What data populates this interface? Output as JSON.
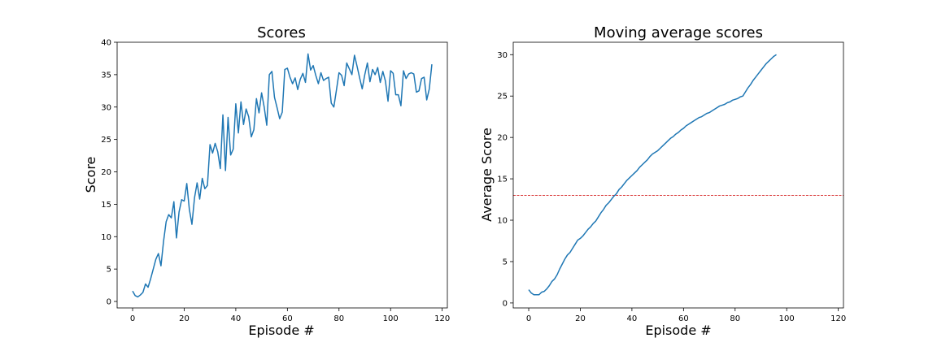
{
  "chart_data": [
    {
      "type": "line",
      "title": "Scores",
      "xlabel": "Episode #",
      "ylabel": "Score",
      "xlim": [
        -6,
        122
      ],
      "ylim": [
        -1,
        40
      ],
      "xticks": [
        0,
        20,
        40,
        60,
        80,
        100,
        120
      ],
      "yticks": [
        0,
        5,
        10,
        15,
        20,
        25,
        30,
        35,
        40
      ],
      "grid": false,
      "series": [
        {
          "color": "#1f77b4",
          "values": [
            1.6,
            0.9,
            0.7,
            1.0,
            1.4,
            2.7,
            2.2,
            3.5,
            5.0,
            6.5,
            7.4,
            5.5,
            9.3,
            12.3,
            13.4,
            12.9,
            15.4,
            9.8,
            13.8,
            15.7,
            15.5,
            18.2,
            14.2,
            11.9,
            16.0,
            18.3,
            15.8,
            19.0,
            17.4,
            17.9,
            24.2,
            22.9,
            24.4,
            23.1,
            20.5,
            28.8,
            20.2,
            28.4,
            22.6,
            23.5,
            30.5,
            26.0,
            30.8,
            27.3,
            29.7,
            28.5,
            25.4,
            26.5,
            31.3,
            29.1,
            32.2,
            30.0,
            27.2,
            35.0,
            35.5,
            31.5,
            29.9,
            28.2,
            29.2,
            35.8,
            36.0,
            34.6,
            33.6,
            34.5,
            32.7,
            34.3,
            35.2,
            33.8,
            38.2,
            35.7,
            36.4,
            34.9,
            33.6,
            35.3,
            34.1,
            34.4,
            34.6,
            30.6,
            30.0,
            32.6,
            35.3,
            34.9,
            33.3,
            36.8,
            35.9,
            35.0,
            38.0,
            36.3,
            34.5,
            32.8,
            35.0,
            36.8,
            33.9,
            35.8,
            35.0,
            36.1,
            33.8,
            35.5,
            34.0,
            30.9,
            35.6,
            35.2,
            31.9,
            31.9,
            30.2,
            35.6,
            34.4,
            35.1,
            35.3,
            35.1,
            32.3,
            32.5,
            34.4,
            34.6,
            31.1,
            32.8,
            36.6
          ]
        }
      ]
    },
    {
      "type": "line",
      "title": "Moving average scores",
      "xlabel": "Episode #",
      "ylabel": "Average Score",
      "xlim": [
        -6,
        122
      ],
      "ylim": [
        -0.6,
        31.5
      ],
      "xticks": [
        0,
        20,
        40,
        60,
        80,
        100,
        120
      ],
      "yticks": [
        0,
        5,
        10,
        15,
        20,
        25,
        30
      ],
      "grid": false,
      "threshold": {
        "y": 13,
        "color": "#d62728",
        "style": "dashed"
      },
      "series": [
        {
          "color": "#1f77b4",
          "values": [
            1.6,
            1.2,
            1.0,
            1.0,
            1.0,
            1.3,
            1.4,
            1.7,
            2.1,
            2.6,
            2.9,
            3.4,
            4.1,
            4.7,
            5.3,
            5.8,
            6.1,
            6.6,
            7.1,
            7.6,
            7.8,
            8.1,
            8.5,
            8.9,
            9.2,
            9.6,
            9.9,
            10.4,
            10.9,
            11.3,
            11.8,
            12.1,
            12.5,
            12.9,
            13.2,
            13.7,
            14.0,
            14.4,
            14.8,
            15.1,
            15.4,
            15.7,
            16.0,
            16.4,
            16.7,
            17.0,
            17.3,
            17.7,
            18.0,
            18.2,
            18.4,
            18.7,
            19.0,
            19.3,
            19.6,
            19.9,
            20.1,
            20.4,
            20.6,
            20.9,
            21.1,
            21.4,
            21.6,
            21.8,
            22.0,
            22.2,
            22.4,
            22.5,
            22.7,
            22.9,
            23.0,
            23.2,
            23.4,
            23.6,
            23.8,
            23.9,
            24.0,
            24.2,
            24.3,
            24.5,
            24.6,
            24.7,
            24.9,
            25.0,
            25.5,
            26.0,
            26.4,
            26.9,
            27.3,
            27.7,
            28.1,
            28.5,
            28.9,
            29.2,
            29.5,
            29.8,
            30.0
          ]
        }
      ]
    }
  ]
}
